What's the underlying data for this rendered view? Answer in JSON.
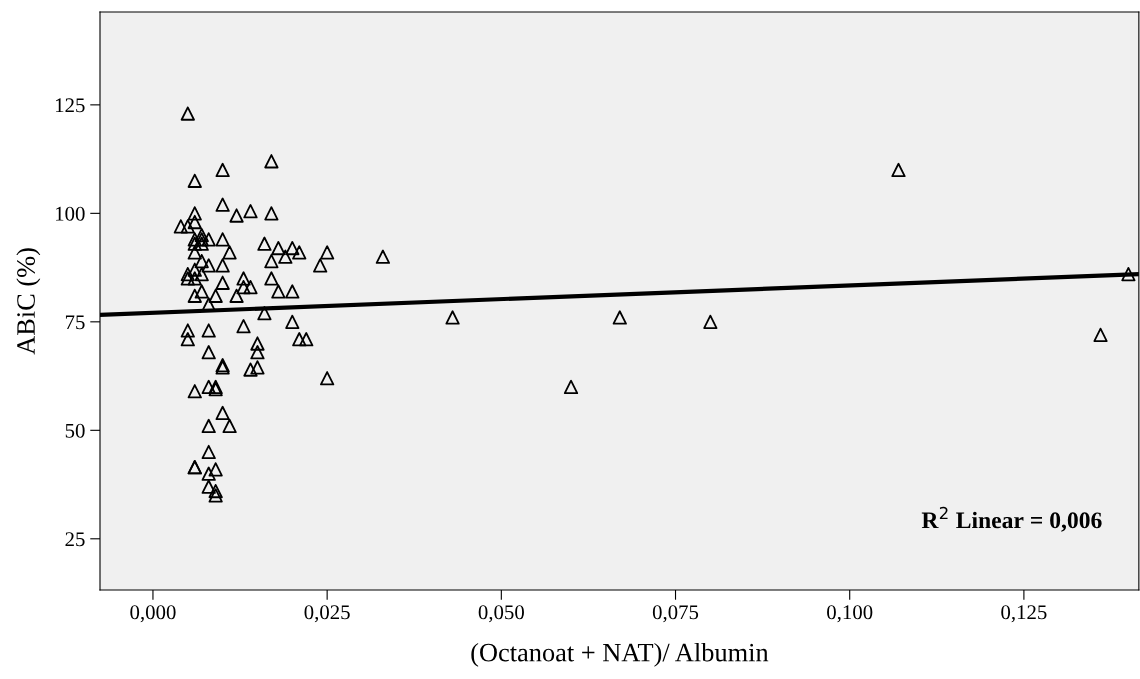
{
  "chart_data": {
    "type": "scatter",
    "xlabel": "(Octanoat + NAT)/ Albumin",
    "ylabel": "ABiC (%)",
    "xlim": [
      -0.0076,
      0.1415
    ],
    "ylim": [
      13.2,
      146.4
    ],
    "xticks": [
      {
        "value": 0,
        "label": "0,000"
      },
      {
        "value": 0.025,
        "label": "0,025"
      },
      {
        "value": 0.05,
        "label": "0,050"
      },
      {
        "value": 0.075,
        "label": "0,075"
      },
      {
        "value": 0.1,
        "label": "0,100"
      },
      {
        "value": 0.125,
        "label": "0,125"
      }
    ],
    "yticks": [
      25,
      50,
      75,
      100,
      125
    ],
    "grid": false,
    "marker": "triangle",
    "annotations": [
      "R$^{2}$ Linear = 0,006"
    ],
    "series": [
      {
        "color": "#000000",
        "x": [
          0.005,
          0.006,
          0.01,
          0.017,
          0.01,
          0.012,
          0.014,
          0.017,
          0.006,
          0.004,
          0.005,
          0.006,
          0.006,
          0.007,
          0.007,
          0.008,
          0.01,
          0.006,
          0.007,
          0.006,
          0.011,
          0.016,
          0.018,
          0.019,
          0.02,
          0.021,
          0.025,
          0.024,
          0.017,
          0.007,
          0.008,
          0.01,
          0.006,
          0.005,
          0.005,
          0.007,
          0.006,
          0.013,
          0.017,
          0.01,
          0.013,
          0.014,
          0.006,
          0.009,
          0.007,
          0.012,
          0.018,
          0.02,
          0.008,
          0.016,
          0.005,
          0.005,
          0.008,
          0.013,
          0.02,
          0.021,
          0.022,
          0.015,
          0.015,
          0.008,
          0.01,
          0.01,
          0.014,
          0.015,
          0.025,
          0.006,
          0.008,
          0.009,
          0.009,
          0.01,
          0.008,
          0.011,
          0.008,
          0.006,
          0.006,
          0.008,
          0.009,
          0.008,
          0.009,
          0.009,
          0.033,
          0.043,
          0.06,
          0.067,
          0.08,
          0.107,
          0.136,
          0.14
        ],
        "values": [
          123,
          107.5,
          110,
          112,
          102,
          99.5,
          100.5,
          100,
          100,
          97,
          97,
          98,
          94,
          95,
          94,
          94,
          94,
          93,
          93,
          91,
          91,
          93,
          92,
          90,
          92,
          91,
          91,
          88,
          89,
          89,
          88,
          88,
          87,
          86,
          85,
          86,
          85,
          85,
          85,
          84,
          83,
          83,
          81,
          81,
          82,
          81,
          82,
          82,
          79,
          77,
          73,
          71,
          73,
          74,
          75,
          71,
          71,
          70,
          68,
          68,
          65,
          64.5,
          64,
          64.5,
          62,
          59,
          60,
          60,
          59.5,
          54,
          51,
          51,
          45,
          41.5,
          41.5,
          40,
          41,
          37,
          36,
          35,
          90,
          76,
          60,
          76,
          75,
          110,
          72,
          86
        ]
      },
      {
        "type": "line",
        "color": "#000000",
        "marker": "none",
        "x": [
          -0.0076,
          0.1415
        ],
        "values": [
          76.6,
          86.0
        ]
      }
    ]
  }
}
